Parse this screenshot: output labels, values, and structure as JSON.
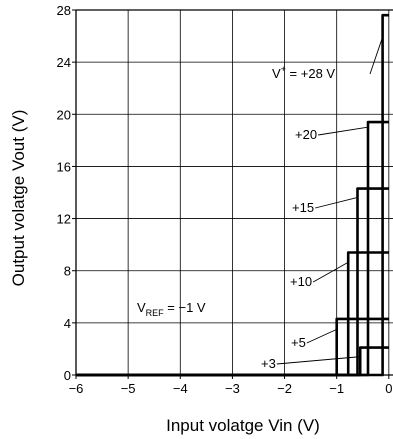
{
  "chart_data": {
    "type": "line",
    "title": "",
    "xlabel": "Input volatge  Vin  (V)",
    "ylabel": "Output volatge  Vout  (V)",
    "xlim": [
      -6,
      0
    ],
    "ylim": [
      0,
      28
    ],
    "x_ticks": [
      -6,
      -5,
      -4,
      -3,
      -2,
      -1,
      0
    ],
    "x_tick_labels": [
      "−6",
      "−5",
      "−4",
      "−3",
      "−2",
      "−1",
      "0"
    ],
    "y_ticks": [
      0,
      4,
      8,
      12,
      16,
      20,
      24,
      28
    ],
    "y_tick_labels": [
      "0",
      "4",
      "8",
      "12",
      "16",
      "20",
      "24",
      "28"
    ],
    "grid": true,
    "annotation": "V_REF = −1 V",
    "vref_text": {
      "prefix": "V",
      "sub": "REF",
      "suffix": " = −1 V"
    },
    "vplus_text": {
      "prefix": "V",
      "sup": "+",
      "suffix": " = +28 V"
    },
    "series": [
      {
        "name": "+3",
        "supply": 3,
        "x": [
          -6,
          -0.55,
          -0.55,
          -0.55,
          -0.55,
          -0.55,
          0
        ],
        "y": [
          0,
          0,
          0.5,
          1.8,
          2.1,
          2.1,
          2.1
        ]
      },
      {
        "name": "+5",
        "supply": 5,
        "x": [
          -6,
          -1.0,
          -1.0,
          -1.0,
          0
        ],
        "y": [
          0,
          0,
          3.8,
          4.3,
          4.3
        ]
      },
      {
        "name": "+10",
        "supply": 10,
        "x": [
          -6,
          -0.78,
          -0.78,
          -0.78,
          0
        ],
        "y": [
          0,
          0,
          8.9,
          9.4,
          9.4
        ]
      },
      {
        "name": "+15",
        "supply": 15,
        "x": [
          -6,
          -0.6,
          -0.6,
          -0.6,
          0
        ],
        "y": [
          0,
          0,
          13.8,
          14.3,
          14.3
        ]
      },
      {
        "name": "+20",
        "supply": 20,
        "x": [
          -6,
          -0.4,
          -0.4,
          -0.4,
          0
        ],
        "y": [
          0,
          0,
          19.0,
          19.4,
          19.4
        ]
      },
      {
        "name": "+28 V",
        "supply": 28,
        "x": [
          -6,
          -0.12,
          -0.12,
          -0.12,
          0
        ],
        "y": [
          0,
          0,
          27.2,
          27.6,
          27.6
        ]
      }
    ],
    "curve_labels": [
      {
        "text": "+20",
        "series": 4
      },
      {
        "text": "+15",
        "series": 3
      },
      {
        "text": "+10",
        "series": 2
      },
      {
        "text": "+5",
        "series": 1
      },
      {
        "text": "+3",
        "series": 0
      }
    ]
  }
}
